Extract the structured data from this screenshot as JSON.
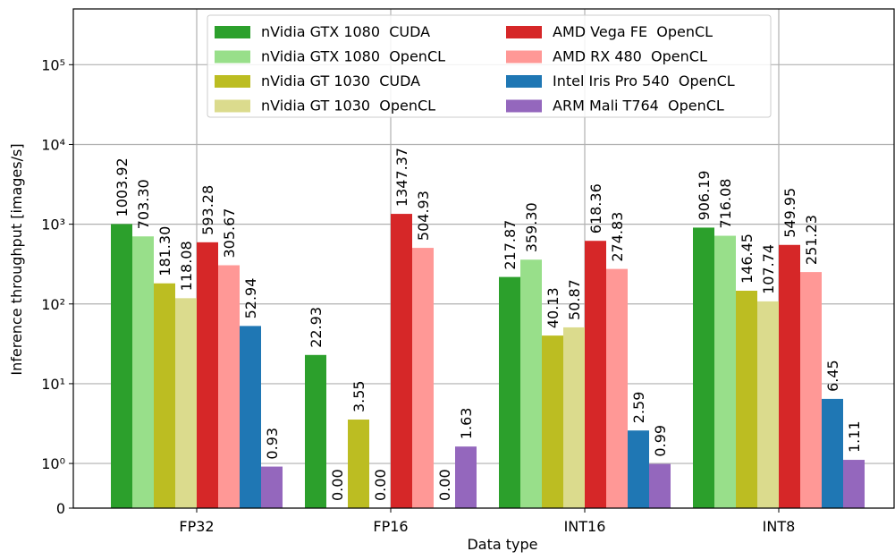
{
  "chart_data": {
    "type": "bar",
    "xlabel": "Data type",
    "ylabel": "Inference throughput [images/s]",
    "categories": [
      "FP32",
      "FP16",
      "INT16",
      "INT8"
    ],
    "yscale": "symlog",
    "ylim": [
      0,
      500000
    ],
    "yticks": [
      0,
      {
        "value": 1,
        "label": "10⁰"
      },
      {
        "value": 10,
        "label": "10¹"
      },
      {
        "value": 100,
        "label": "10²"
      },
      {
        "value": 1000,
        "label": "10³"
      },
      {
        "value": 10000,
        "label": "10⁴"
      },
      {
        "value": 100000,
        "label": "10⁵"
      }
    ],
    "grid": true,
    "legend": "upper center",
    "series": [
      {
        "name": "nVidia GTX 1080  CUDA",
        "color": "#2ca02c",
        "values": [
          1003.92,
          22.93,
          217.87,
          906.19
        ],
        "value_labels": [
          "1003.92",
          "22.93",
          "217.87",
          "906.19"
        ]
      },
      {
        "name": "nVidia GTX 1080  OpenCL",
        "color": "#98df8a",
        "values": [
          703.3,
          0,
          359.3,
          716.08
        ],
        "value_labels": [
          "703.30",
          "0.00",
          "359.30",
          "716.08"
        ]
      },
      {
        "name": "nVidia GT 1030  CUDA",
        "color": "#bcbd22",
        "values": [
          181.3,
          3.55,
          40.13,
          146.45
        ],
        "value_labels": [
          "181.30",
          "3.55",
          "40.13",
          "146.45"
        ]
      },
      {
        "name": "nVidia GT 1030  OpenCL",
        "color": "#dbdb8d",
        "values": [
          118.08,
          0,
          50.87,
          107.74
        ],
        "value_labels": [
          "118.08",
          "0.00",
          "50.87",
          "107.74"
        ]
      },
      {
        "name": "AMD Vega FE  OpenCL",
        "color": "#d62728",
        "values": [
          593.28,
          1347.37,
          618.36,
          549.95
        ],
        "value_labels": [
          "593.28",
          "1347.37",
          "618.36",
          "549.95"
        ]
      },
      {
        "name": "AMD RX 480  OpenCL",
        "color": "#ff9896",
        "values": [
          305.67,
          504.93,
          274.83,
          251.23
        ],
        "value_labels": [
          "305.67",
          "504.93",
          "274.83",
          "251.23"
        ]
      },
      {
        "name": "Intel Iris Pro 540  OpenCL",
        "color": "#1f77b4",
        "values": [
          52.94,
          0,
          2.59,
          6.45
        ],
        "value_labels": [
          "52.94",
          "0.00",
          "2.59",
          "6.45"
        ]
      },
      {
        "name": "ARM Mali T764  OpenCL",
        "color": "#9467bd",
        "values": [
          0.93,
          1.63,
          0.99,
          1.11
        ],
        "value_labels": [
          "0.93",
          "1.63",
          "0.99",
          "1.11"
        ]
      }
    ]
  }
}
